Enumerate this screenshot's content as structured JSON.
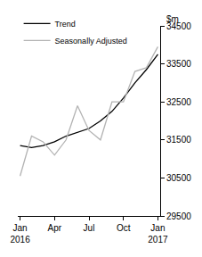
{
  "chart_data": {
    "type": "line",
    "y_label": "$m",
    "categories": [
      "Jan\n2016",
      null,
      null,
      "Apr",
      null,
      null,
      "Jul",
      null,
      null,
      "Oct",
      null,
      null,
      "Jan\n2017"
    ],
    "series": [
      {
        "name": "Trend",
        "color": "#000000",
        "values": [
          31350,
          31300,
          31350,
          31450,
          31600,
          31700,
          31800,
          32000,
          32250,
          32600,
          33000,
          33350,
          33750
        ]
      },
      {
        "name": "Seasonally Adjusted",
        "color": "#b3b3b3",
        "values": [
          30550,
          31600,
          31450,
          31100,
          31500,
          32400,
          31750,
          31500,
          32500,
          32500,
          33300,
          33400,
          33950
        ]
      }
    ],
    "ylim": [
      29500,
      34500
    ],
    "yticks": [
      29500,
      30500,
      31500,
      32500,
      33500,
      34500
    ],
    "grid": false,
    "legend": "top left"
  }
}
